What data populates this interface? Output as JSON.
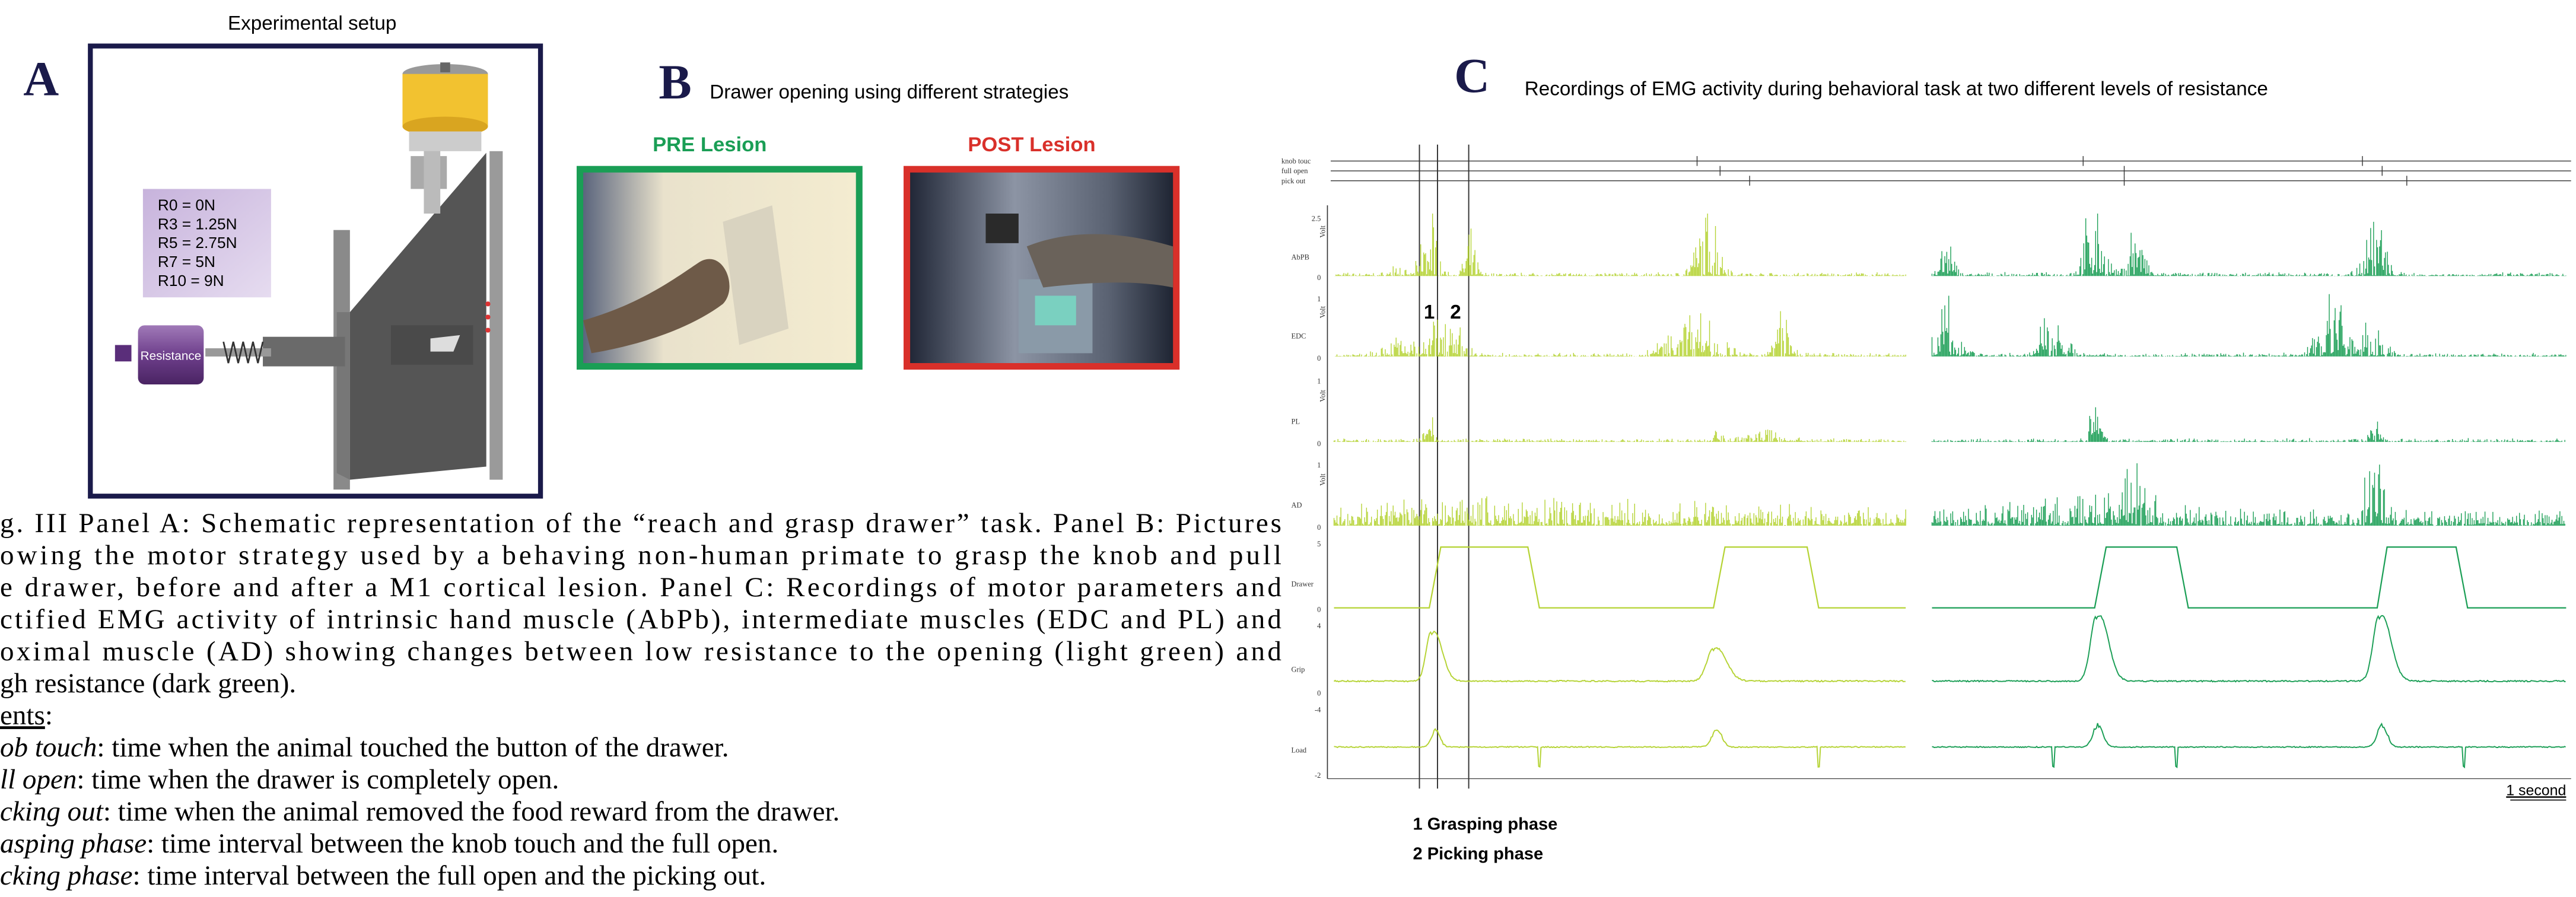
{
  "panel_a": {
    "heading": "Experimental setup",
    "label": "A",
    "resistances": [
      "R0  =  0N",
      "R3  =  1.25N",
      "R5  =  2.75N",
      "R7  =  5N",
      "R10 = 9N"
    ],
    "device_label": "Resistance"
  },
  "panel_b": {
    "label": "B",
    "title": "Drawer opening using different strategies",
    "pre": "PRE Lesion",
    "post": "POST Lesion"
  },
  "panel_c": {
    "label": "C",
    "title": "Recordings of EMG activity during behavioral task at two different levels of resistance",
    "events": [
      "knob touc",
      "full open",
      "pick out"
    ],
    "channels": [
      {
        "name": "AbPB",
        "unit": "Volt",
        "ticks": [
          "2.5",
          "0"
        ]
      },
      {
        "name": "EDC",
        "unit": "Volt",
        "ticks": [
          "1",
          "0"
        ]
      },
      {
        "name": "PL",
        "unit": "Volt",
        "ticks": [
          "1",
          "0"
        ]
      },
      {
        "name": "AD",
        "unit": "Volt",
        "ticks": [
          "1",
          "0"
        ]
      },
      {
        "name": "Drawer",
        "ticks": [
          "5",
          "0"
        ]
      },
      {
        "name": "Grip",
        "ticks": [
          "4",
          "0"
        ]
      },
      {
        "name": "Load",
        "ticks": [
          "-4",
          "-2"
        ]
      }
    ],
    "phase_markers": [
      "1",
      "2"
    ],
    "scale_bar": "1 second",
    "legend": [
      "1 Grasping phase",
      "2 Picking phase"
    ]
  },
  "caption": {
    "lines": [
      "g. III Panel A: Schematic representation of the “reach and grasp drawer” task. Panel B: Pictures",
      "owing the motor strategy used by a behaving non-human primate to grasp the knob and pull",
      "e drawer, before and after a M1 cortical lesion. Panel C: Recordings of motor parameters and",
      "ctified EMG activity of intrinsic hand muscle (AbPb), intermediate muscles (EDC and PL) and",
      "oximal muscle (AD) showing changes between low resistance to the opening (light green) and",
      "gh resistance (dark green)."
    ],
    "events_heading": "ents",
    "events_colon": ":",
    "definitions": [
      {
        "term": "ob touch",
        "text": ": time when the animal touched the button of the drawer."
      },
      {
        "term": "ll open",
        "text": ": time when the drawer is completely open."
      },
      {
        "term": "cking out",
        "text": ": time when the animal removed the food reward from the drawer."
      },
      {
        "term": "asping phase",
        "text": ": time interval between the knob touch and the full open."
      },
      {
        "term": "cking phase",
        "text": ": time interval between the full open and the picking out."
      }
    ]
  }
}
